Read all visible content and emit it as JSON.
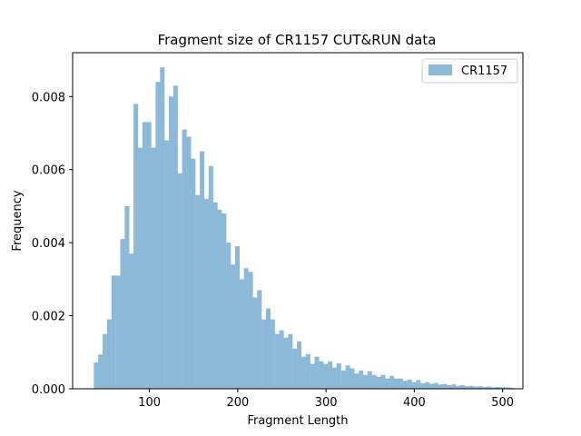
{
  "chart_data": {
    "type": "bar",
    "title": "Fragment size of CR1157 CUT&RUN data",
    "xlabel": "Fragment Length",
    "ylabel": "Frequency",
    "xlim": [
      13,
      523
    ],
    "ylim": [
      0,
      0.0092
    ],
    "xticks": [
      100,
      200,
      300,
      400,
      500
    ],
    "xtick_labels": [
      "100",
      "200",
      "300",
      "400",
      "500"
    ],
    "yticks": [
      0,
      0.002,
      0.004,
      0.006,
      0.008
    ],
    "ytick_labels": [
      "0.000",
      "0.002",
      "0.004",
      "0.006",
      "0.008"
    ],
    "legend_position": "top-right",
    "color": "#8db9d9",
    "series": [
      {
        "name": "CR1157",
        "bin_start": 37,
        "bin_width": 5,
        "values": [
          0.00072,
          0.00094,
          0.0015,
          0.0019,
          0.0031,
          0.0031,
          0.0041,
          0.005,
          0.0037,
          0.0078,
          0.0066,
          0.0073,
          0.0073,
          0.0066,
          0.0084,
          0.0088,
          0.0068,
          0.008,
          0.0083,
          0.0059,
          0.0071,
          0.0069,
          0.0063,
          0.0053,
          0.0065,
          0.0052,
          0.0061,
          0.0051,
          0.0049,
          0.0048,
          0.004,
          0.0034,
          0.0039,
          0.003,
          0.0033,
          0.0032,
          0.0025,
          0.0027,
          0.0019,
          0.0022,
          0.0019,
          0.0015,
          0.0016,
          0.0014,
          0.0015,
          0.0011,
          0.0013,
          0.00088,
          0.00095,
          0.00068,
          0.00088,
          0.00075,
          0.00068,
          0.00075,
          0.00058,
          0.0007,
          0.0005,
          0.00064,
          0.00056,
          0.00042,
          0.0005,
          0.00038,
          0.00048,
          0.00038,
          0.00033,
          0.00038,
          0.00028,
          0.00035,
          0.00028,
          0.00028,
          0.00022,
          0.00025,
          0.00018,
          0.00024,
          0.00015,
          0.00018,
          0.00014,
          0.00016,
          0.00012,
          0.00013,
          0.0001,
          0.00012,
          8e-05,
          0.0001,
          7e-05,
          8e-05,
          6e-05,
          7e-05,
          5e-05,
          6e-05,
          4e-05,
          5e-05,
          4e-05,
          4e-05,
          3e-05
        ]
      }
    ]
  }
}
